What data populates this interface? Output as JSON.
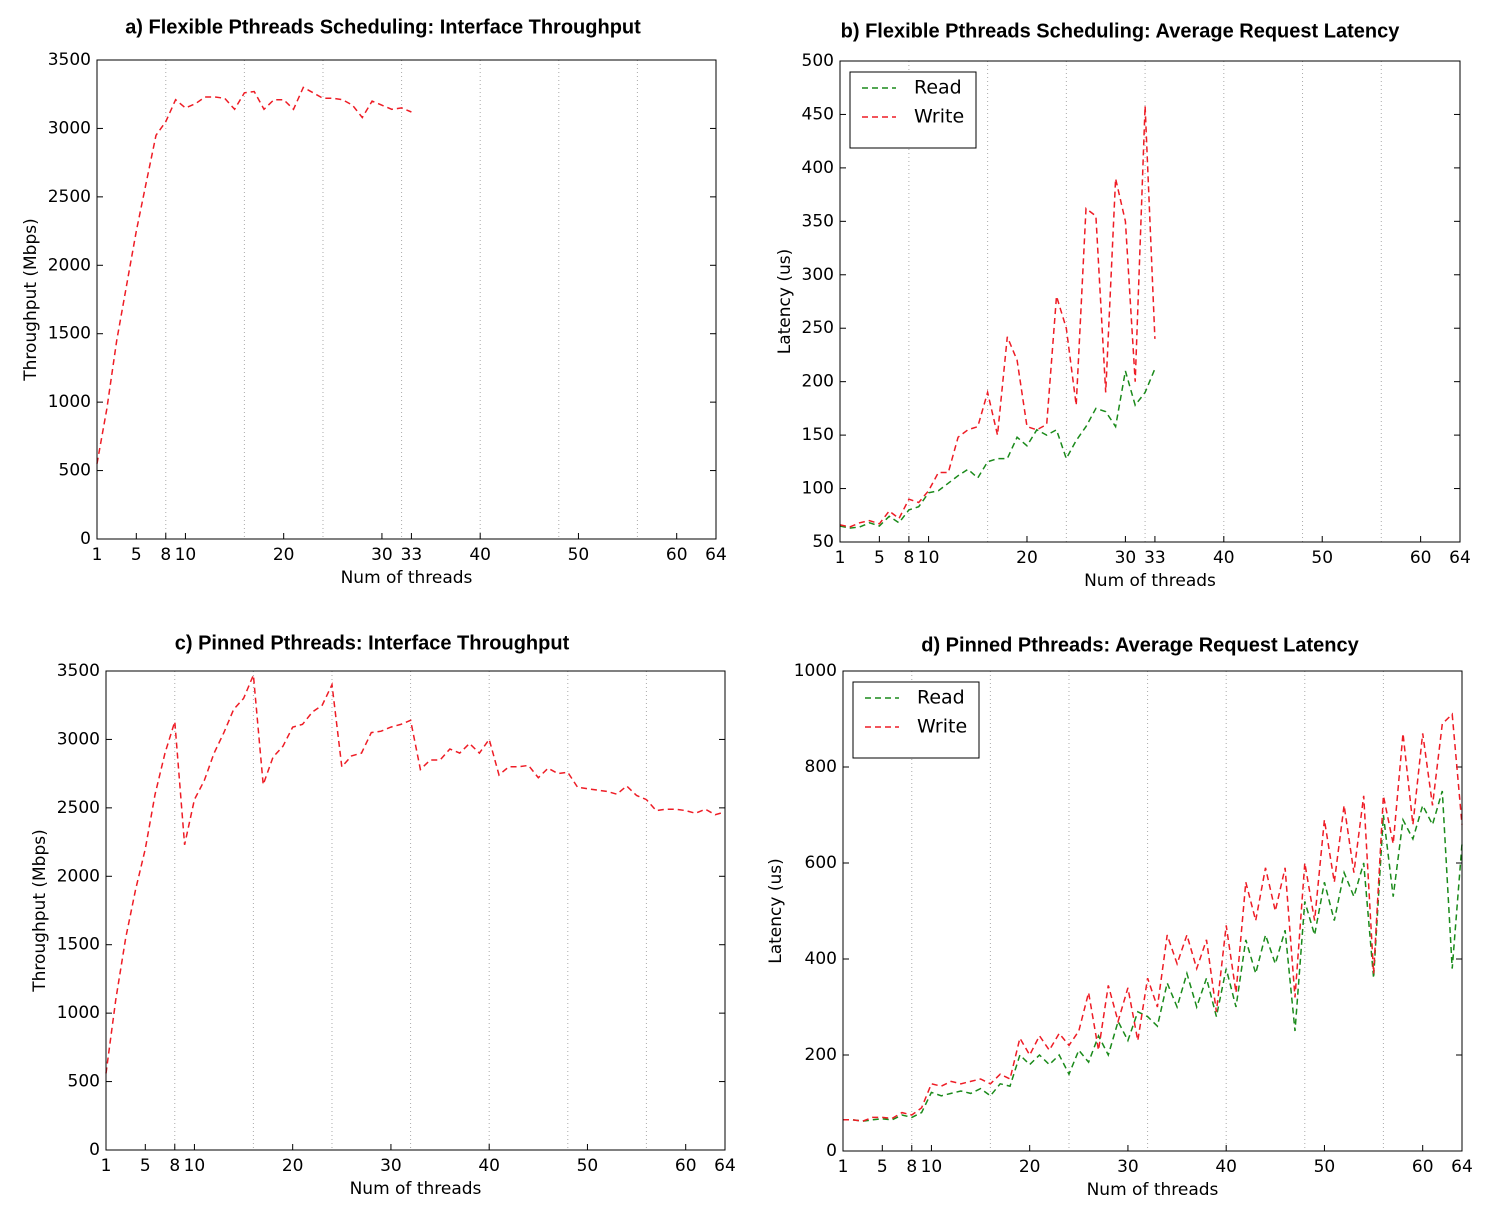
{
  "chart_data": [
    {
      "type": "line",
      "title": "a) Flexible Pthreads Scheduling: Interface Throughput",
      "xlabel": "Num of threads",
      "ylabel": "Throughput (Mbps)",
      "x": [
        1,
        2,
        3,
        4,
        5,
        6,
        7,
        8,
        9,
        10,
        11,
        12,
        13,
        14,
        15,
        16,
        17,
        18,
        19,
        20,
        21,
        22,
        23,
        24,
        25,
        26,
        27,
        28,
        29,
        30,
        31,
        32,
        33
      ],
      "series": [
        {
          "color": "#ee1c25",
          "values": [
            550,
            950,
            1450,
            1850,
            2250,
            2600,
            2950,
            3050,
            3210,
            3150,
            3180,
            3230,
            3230,
            3220,
            3140,
            3260,
            3270,
            3140,
            3210,
            3210,
            3140,
            3300,
            3260,
            3220,
            3220,
            3210,
            3170,
            3080,
            3200,
            3170,
            3140,
            3150,
            3120
          ]
        }
      ],
      "xlim": [
        1,
        64
      ],
      "ylim": [
        0,
        3500
      ],
      "xticks": [
        1,
        5,
        8,
        10,
        20,
        30,
        33,
        40,
        50,
        60,
        64
      ],
      "yticks": [
        0,
        500,
        1000,
        1500,
        2000,
        2500,
        3000,
        3500
      ],
      "vlines": [
        8,
        16,
        24,
        32,
        40,
        48,
        56
      ]
    },
    {
      "type": "line",
      "title": "b) Flexible Pthreads Scheduling: Average Request Latency",
      "xlabel": "Num of threads",
      "ylabel": "Latency (us)",
      "x": [
        1,
        2,
        3,
        4,
        5,
        6,
        7,
        8,
        9,
        10,
        11,
        12,
        13,
        14,
        15,
        16,
        17,
        18,
        19,
        20,
        21,
        22,
        23,
        24,
        25,
        26,
        27,
        28,
        29,
        30,
        31,
        32,
        33
      ],
      "series": [
        {
          "name": "Read",
          "color": "#1a8a1a",
          "values": [
            65,
            63,
            64,
            68,
            65,
            74,
            68,
            80,
            83,
            96,
            98,
            105,
            112,
            118,
            110,
            125,
            128,
            128,
            148,
            140,
            155,
            150,
            155,
            128,
            145,
            158,
            175,
            172,
            158,
            210,
            178,
            190,
            212
          ]
        },
        {
          "name": "Write",
          "color": "#ee1c25",
          "values": [
            66,
            64,
            68,
            70,
            67,
            79,
            72,
            90,
            87,
            98,
            115,
            115,
            148,
            155,
            158,
            190,
            150,
            242,
            220,
            158,
            155,
            160,
            280,
            250,
            178,
            362,
            355,
            190,
            390,
            350,
            200,
            458,
            240
          ]
        }
      ],
      "xlim": [
        1,
        64
      ],
      "ylim": [
        50,
        500
      ],
      "xticks": [
        1,
        5,
        8,
        10,
        20,
        30,
        33,
        40,
        50,
        60,
        64
      ],
      "yticks": [
        50,
        100,
        150,
        200,
        250,
        300,
        350,
        400,
        450,
        500
      ],
      "vlines": [
        8,
        16,
        24,
        32,
        40,
        48,
        56
      ],
      "legend": "upper left"
    },
    {
      "type": "line",
      "title": "c) Pinned Pthreads: Interface Throughput",
      "xlabel": "Num of threads",
      "ylabel": "Throughput (Mbps)",
      "x": [
        1,
        2,
        3,
        4,
        5,
        6,
        7,
        8,
        9,
        10,
        11,
        12,
        13,
        14,
        15,
        16,
        17,
        18,
        19,
        20,
        21,
        22,
        23,
        24,
        25,
        26,
        27,
        28,
        29,
        30,
        31,
        32,
        33,
        34,
        35,
        36,
        37,
        38,
        39,
        40,
        41,
        42,
        43,
        44,
        45,
        46,
        47,
        48,
        49,
        50,
        51,
        52,
        53,
        54,
        55,
        56,
        57,
        58,
        59,
        60,
        61,
        62,
        63,
        64
      ],
      "series": [
        {
          "color": "#ee1c25",
          "values": [
            560,
            1100,
            1550,
            1900,
            2200,
            2600,
            2900,
            3130,
            2230,
            2560,
            2700,
            2900,
            3050,
            3220,
            3300,
            3470,
            2670,
            2870,
            2950,
            3090,
            3110,
            3200,
            3250,
            3400,
            2800,
            2880,
            2900,
            3050,
            3060,
            3090,
            3110,
            3140,
            2780,
            2850,
            2850,
            2930,
            2900,
            2970,
            2900,
            3000,
            2740,
            2800,
            2800,
            2810,
            2720,
            2790,
            2750,
            2760,
            2650,
            2640,
            2630,
            2620,
            2600,
            2660,
            2590,
            2560,
            2480,
            2490,
            2490,
            2480,
            2460,
            2490,
            2450,
            2470
          ]
        }
      ],
      "xlim": [
        1,
        64
      ],
      "ylim": [
        0,
        3500
      ],
      "xticks": [
        1,
        5,
        8,
        10,
        20,
        30,
        40,
        50,
        60,
        64
      ],
      "yticks": [
        0,
        500,
        1000,
        1500,
        2000,
        2500,
        3000,
        3500
      ],
      "vlines": [
        8,
        16,
        24,
        32,
        40,
        48,
        56
      ]
    },
    {
      "type": "line",
      "title": "d) Pinned Pthreads: Average Request Latency",
      "xlabel": "Num of threads",
      "ylabel": "Latency (us)",
      "x": [
        1,
        2,
        3,
        4,
        5,
        6,
        7,
        8,
        9,
        10,
        11,
        12,
        13,
        14,
        15,
        16,
        17,
        18,
        19,
        20,
        21,
        22,
        23,
        24,
        25,
        26,
        27,
        28,
        29,
        30,
        31,
        32,
        33,
        34,
        35,
        36,
        37,
        38,
        39,
        40,
        41,
        42,
        43,
        44,
        45,
        46,
        47,
        48,
        49,
        50,
        51,
        52,
        53,
        54,
        55,
        56,
        57,
        58,
        59,
        60,
        61,
        62,
        63,
        64
      ],
      "series": [
        {
          "name": "Read",
          "color": "#1a8a1a",
          "values": [
            65,
            65,
            62,
            65,
            67,
            65,
            75,
            70,
            80,
            122,
            115,
            120,
            125,
            120,
            130,
            115,
            140,
            135,
            200,
            180,
            200,
            180,
            200,
            160,
            210,
            185,
            240,
            200,
            270,
            230,
            290,
            280,
            260,
            350,
            300,
            370,
            300,
            360,
            280,
            380,
            300,
            440,
            370,
            450,
            390,
            460,
            250,
            520,
            450,
            560,
            480,
            580,
            530,
            600,
            360,
            700,
            530,
            690,
            650,
            720,
            680,
            750,
            380,
            640
          ]
        },
        {
          "name": "Write",
          "color": "#ee1c25",
          "values": [
            65,
            65,
            62,
            70,
            70,
            68,
            80,
            75,
            90,
            140,
            135,
            145,
            140,
            145,
            150,
            140,
            160,
            150,
            235,
            200,
            240,
            210,
            245,
            220,
            250,
            330,
            210,
            345,
            270,
            340,
            230,
            360,
            300,
            450,
            390,
            450,
            380,
            440,
            290,
            470,
            330,
            560,
            480,
            590,
            500,
            590,
            320,
            600,
            480,
            690,
            560,
            720,
            580,
            740,
            370,
            740,
            640,
            870,
            680,
            870,
            720,
            890,
            910,
            680
          ]
        }
      ],
      "xlim": [
        1,
        64
      ],
      "ylim": [
        0,
        1000
      ],
      "xticks": [
        1,
        5,
        8,
        10,
        20,
        30,
        40,
        50,
        60,
        64
      ],
      "yticks": [
        0,
        200,
        400,
        600,
        800,
        1000
      ],
      "vlines": [
        8,
        16,
        24,
        32,
        40,
        48,
        56
      ],
      "legend": "upper left"
    }
  ]
}
